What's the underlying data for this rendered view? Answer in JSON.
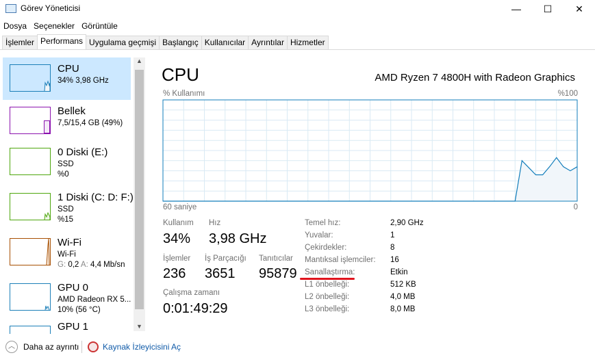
{
  "window": {
    "title": "Görev Yöneticisi",
    "controls": {
      "minimize": "—",
      "maximize": "☐",
      "close": "✕"
    }
  },
  "menu": [
    "Dosya",
    "Seçenekler",
    "Görüntüle"
  ],
  "tabs": [
    {
      "label": "İşlemler"
    },
    {
      "label": "Performans",
      "active": true
    },
    {
      "label": "Uygulama geçmişi"
    },
    {
      "label": "Başlangıç"
    },
    {
      "label": "Kullanıcılar"
    },
    {
      "label": "Ayrıntılar"
    },
    {
      "label": "Hizmetler"
    }
  ],
  "sidebar": {
    "items": [
      {
        "name": "CPU",
        "line1": "34% 3,98 GHz",
        "color": "#1b7fb8",
        "selected": true
      },
      {
        "name": "Bellek",
        "line1": "7,5/15,4 GB (49%)",
        "color": "#8b12ae"
      },
      {
        "name": "0 Diski (E:)",
        "line1": "SSD",
        "line2": "%0",
        "color": "#4da60c"
      },
      {
        "name": "1 Diski (C: D: F:)",
        "line1": "SSD",
        "line2": "%15",
        "color": "#4da60c"
      },
      {
        "name": "Wi-Fi",
        "line1": "Wi-Fi",
        "line2_g": "G:",
        "line2_gv": "0,2",
        "line2_a": "A:",
        "line2_av": "4,4 Mb/sn",
        "color": "#a74f01"
      },
      {
        "name": "GPU 0",
        "line1": "AMD Radeon RX 5...",
        "line2": "10% (56 °C)",
        "color": "#1b7fb8"
      },
      {
        "name": "GPU 1",
        "color": "#1b7fb8"
      }
    ]
  },
  "main": {
    "title": "CPU",
    "model": "AMD Ryzen 7 4800H with Radeon Graphics",
    "usage_label": "% Kullanımı",
    "max_label": "%100",
    "time_label": "60 saniye",
    "zero_label": "0",
    "stats": {
      "usage_l": "Kullanım",
      "usage": "34%",
      "speed_l": "Hız",
      "speed": "3,98 GHz",
      "proc_l": "İşlemler",
      "proc": "236",
      "threads_l": "İş Parçacığı",
      "threads": "3651",
      "handles_l": "Tanıtıcılar",
      "handles": "95879",
      "uptime_l": "Çalışma zamanı",
      "uptime": "0:01:49:29"
    },
    "specs": [
      [
        "Temel hız:",
        "2,90 GHz"
      ],
      [
        "Yuvalar:",
        "1"
      ],
      [
        "Çekirdekler:",
        "8"
      ],
      [
        "Mantıksal işlemciler:",
        "16"
      ],
      [
        "Sanallaştırma:",
        "Etkin"
      ],
      [
        "L1 önbelleği:",
        "512 KB"
      ],
      [
        "L2 önbelleği:",
        "4,0 MB"
      ],
      [
        "L3 önbelleği:",
        "8,0 MB"
      ]
    ],
    "annotation_color": "#e0141e"
  },
  "chart_data": {
    "type": "area",
    "xlabel": "60 saniye",
    "ylabel": "% Kullanımı",
    "ylim": [
      0,
      100
    ],
    "xlim": [
      60,
      0
    ],
    "grid": true,
    "color": "#117dbb",
    "x": [
      60,
      9,
      8,
      7,
      6,
      5,
      4,
      3,
      2,
      1,
      0
    ],
    "values": [
      0,
      0,
      40,
      33,
      26,
      26,
      34,
      43,
      34,
      30,
      34
    ]
  },
  "footer": {
    "less": "Daha az ayrıntı",
    "monitor": "Kaynak İzleyicisini Aç"
  }
}
